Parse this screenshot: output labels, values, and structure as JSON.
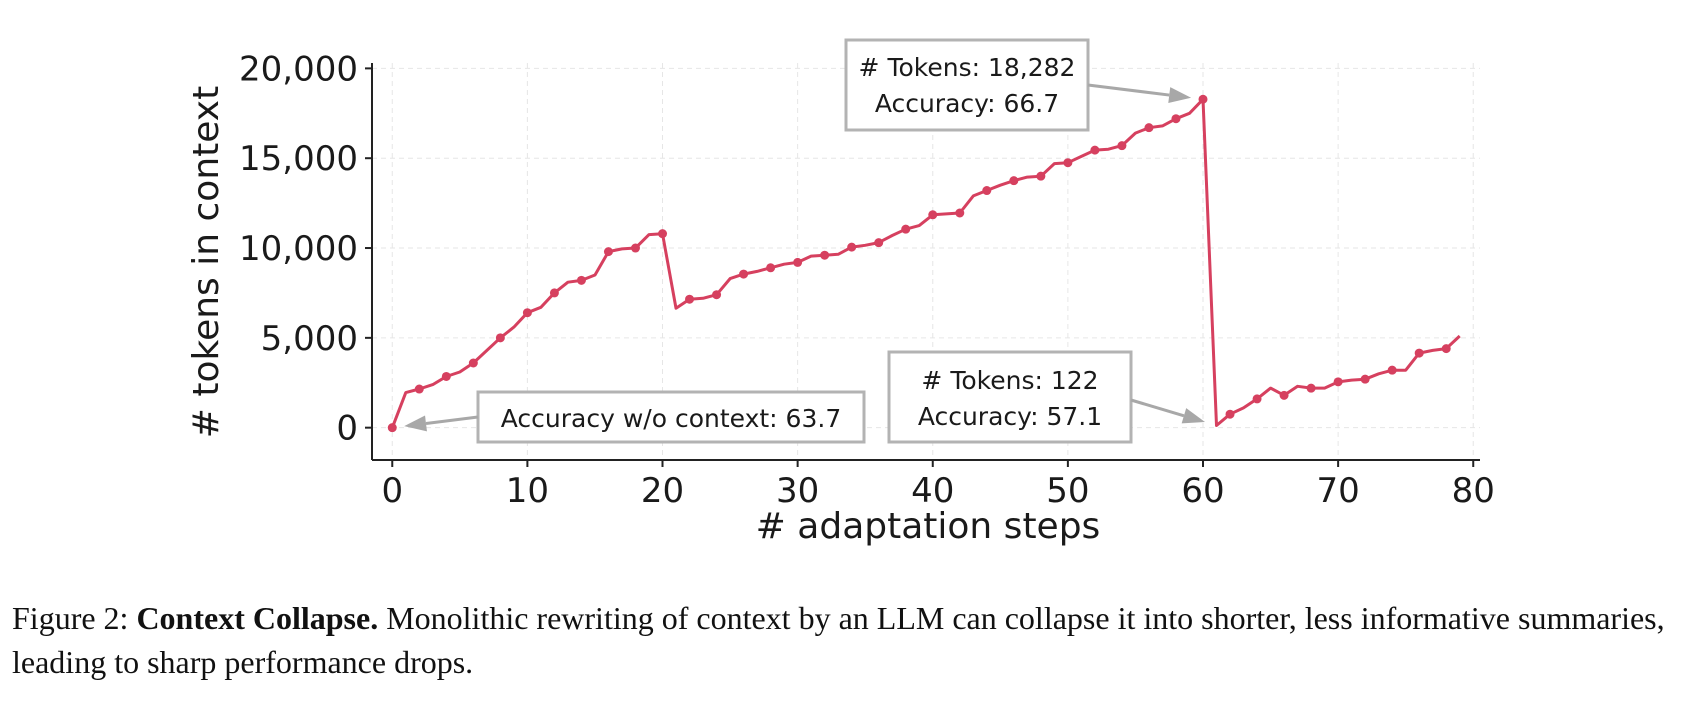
{
  "chart_data": {
    "type": "line",
    "xlabel": "# adaptation steps",
    "ylabel": "# tokens in context",
    "xlim": [
      -1.5,
      80.5
    ],
    "ylim": [
      -1800,
      20300
    ],
    "xticks": [
      0,
      10,
      20,
      30,
      40,
      50,
      60,
      70,
      80
    ],
    "xtick_labels": [
      "0",
      "10",
      "20",
      "30",
      "40",
      "50",
      "60",
      "70",
      "80"
    ],
    "yticks": [
      0,
      5000,
      10000,
      15000,
      20000
    ],
    "ytick_labels": [
      "0",
      "5,000",
      "10,000",
      "15,000",
      "20,000"
    ],
    "grid": true,
    "line_color": "#d6405f",
    "series": [
      {
        "name": "tokens",
        "x": [
          0,
          1,
          2,
          3,
          4,
          5,
          6,
          7,
          8,
          9,
          10,
          11,
          12,
          13,
          14,
          15,
          16,
          17,
          18,
          19,
          20,
          21,
          22,
          23,
          24,
          25,
          26,
          27,
          28,
          29,
          30,
          31,
          32,
          33,
          34,
          35,
          36,
          37,
          38,
          39,
          40,
          41,
          42,
          43,
          44,
          45,
          46,
          47,
          48,
          49,
          50,
          51,
          52,
          53,
          54,
          55,
          56,
          57,
          58,
          59,
          60,
          61,
          62,
          63,
          64,
          65,
          66,
          67,
          68,
          69,
          70,
          71,
          72,
          73,
          74,
          75,
          76,
          77,
          78,
          79
        ],
        "y": [
          0,
          1950,
          2150,
          2400,
          2850,
          3100,
          3600,
          4300,
          5000,
          5600,
          6400,
          6700,
          7500,
          8100,
          8200,
          8500,
          9800,
          9950,
          10000,
          10750,
          10800,
          6650,
          7150,
          7200,
          7400,
          8300,
          8550,
          8700,
          8900,
          9100,
          9200,
          9550,
          9600,
          9650,
          10050,
          10150,
          10300,
          10700,
          11050,
          11250,
          11850,
          11900,
          11950,
          12900,
          13200,
          13500,
          13750,
          13950,
          14000,
          14700,
          14750,
          15100,
          15450,
          15500,
          15700,
          16400,
          16700,
          16800,
          17200,
          17500,
          18282,
          122,
          750,
          1100,
          1600,
          2200,
          1800,
          2300,
          2200,
          2200,
          2550,
          2650,
          2700,
          3000,
          3200,
          3200,
          4150,
          4300,
          4400,
          5100
        ]
      }
    ],
    "annotations": [
      {
        "lines": [
          "# Tokens: 18,282",
          "Accuracy: 66.7"
        ],
        "points_to": [
          60,
          18282
        ]
      },
      {
        "lines": [
          "Accuracy w/o context: 63.7"
        ],
        "points_to": [
          0,
          0
        ]
      },
      {
        "lines": [
          "# Tokens: 122",
          "Accuracy: 57.1"
        ],
        "points_to": [
          61,
          122
        ]
      }
    ]
  },
  "caption": {
    "label": "Figure 2:",
    "title": "Context Collapse.",
    "text": "Monolithic rewriting of context by an LLM can collapse it into shorter, less informative summaries, leading to sharp performance drops."
  }
}
